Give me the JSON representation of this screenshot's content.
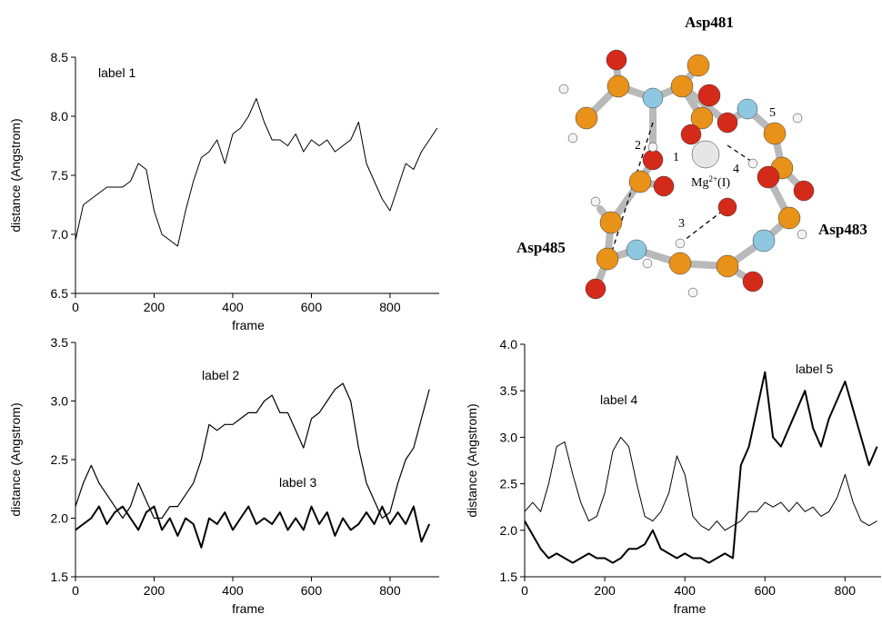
{
  "chart_data": [
    {
      "type": "line",
      "xlabel": "frame",
      "ylabel": "distance (Angstrom)",
      "xlim": [
        0,
        925
      ],
      "ylim": [
        6.5,
        8.5
      ],
      "xticks": [
        0,
        200,
        400,
        600,
        800
      ],
      "yticks": [
        {
          "value": 6.5,
          "label": "6.5"
        },
        {
          "value": 7,
          "label": "7.0"
        },
        {
          "value": 7.5,
          "label": "7.5"
        },
        {
          "value": 8,
          "label": "8.0"
        },
        {
          "value": 8.5,
          "label": "8.5"
        }
      ],
      "annotations": [
        "label 1"
      ],
      "x": [
        0,
        20,
        40,
        60,
        80,
        100,
        120,
        140,
        160,
        180,
        200,
        220,
        240,
        260,
        280,
        300,
        320,
        340,
        360,
        380,
        400,
        420,
        440,
        460,
        480,
        500,
        520,
        540,
        560,
        580,
        600,
        620,
        640,
        660,
        680,
        700,
        720,
        740,
        760,
        780,
        800,
        820,
        840,
        860,
        880,
        900,
        920
      ],
      "series": [
        {
          "color": "#000000",
          "width": 1,
          "values": [
            6.95,
            7.25,
            7.3,
            7.35,
            7.4,
            7.4,
            7.4,
            7.45,
            7.6,
            7.55,
            7.2,
            7.0,
            6.95,
            6.9,
            7.2,
            7.45,
            7.65,
            7.7,
            7.8,
            7.6,
            7.85,
            7.9,
            8.0,
            8.15,
            7.95,
            7.8,
            7.8,
            7.75,
            7.85,
            7.7,
            7.8,
            7.75,
            7.8,
            7.7,
            7.75,
            7.8,
            7.95,
            7.6,
            7.45,
            7.3,
            7.2,
            7.4,
            7.6,
            7.55,
            7.7,
            7.8,
            7.9
          ]
        }
      ]
    },
    {
      "type": "line",
      "xlabel": "frame",
      "ylabel": "distance (Angstrom)",
      "xlim": [
        0,
        925
      ],
      "ylim": [
        1.5,
        3.5
      ],
      "xticks": [
        0,
        200,
        400,
        600,
        800
      ],
      "yticks": [
        1.5,
        {
          "value": 2,
          "label": "2.0"
        },
        2.5,
        {
          "value": 3,
          "label": "3.0"
        },
        3.5
      ],
      "annotations": [
        "label 2",
        "label 3"
      ],
      "x": [
        0,
        20,
        40,
        60,
        80,
        100,
        120,
        140,
        160,
        180,
        200,
        220,
        240,
        260,
        280,
        300,
        320,
        340,
        360,
        380,
        400,
        420,
        440,
        460,
        480,
        500,
        520,
        540,
        560,
        580,
        600,
        620,
        640,
        660,
        680,
        700,
        720,
        740,
        760,
        780,
        800,
        820,
        840,
        860,
        880,
        900
      ],
      "series": [
        {
          "color": "#000000",
          "width": 1.2,
          "values": [
            2.1,
            2.3,
            2.45,
            2.3,
            2.2,
            2.1,
            2.0,
            2.1,
            2.3,
            2.15,
            2.0,
            2.0,
            2.1,
            2.1,
            2.2,
            2.3,
            2.5,
            2.8,
            2.75,
            2.8,
            2.8,
            2.85,
            2.9,
            2.9,
            3.0,
            3.05,
            2.9,
            2.9,
            2.75,
            2.6,
            2.85,
            2.9,
            3.0,
            3.1,
            3.15,
            3.0,
            2.6,
            2.3,
            2.15,
            2.0,
            2.05,
            2.3,
            2.5,
            2.6,
            2.85,
            3.1
          ]
        },
        {
          "color": "#000000",
          "width": 2,
          "values": [
            1.9,
            1.95,
            2.0,
            2.1,
            1.95,
            2.05,
            2.1,
            2.0,
            1.9,
            2.05,
            2.1,
            1.9,
            2.0,
            1.85,
            2.0,
            1.95,
            1.75,
            2.0,
            1.95,
            2.05,
            1.9,
            2.0,
            2.1,
            1.95,
            2.0,
            1.95,
            2.05,
            1.9,
            2.0,
            1.9,
            2.1,
            1.95,
            2.05,
            1.85,
            2.0,
            1.9,
            1.95,
            2.05,
            1.95,
            2.1,
            1.95,
            2.05,
            1.95,
            2.1,
            1.8,
            1.95
          ]
        }
      ]
    },
    {
      "type": "line",
      "xlabel": "frame",
      "ylabel": "distance (Angstrom)",
      "xlim": [
        0,
        890
      ],
      "ylim": [
        1.5,
        4
      ],
      "xticks": [
        0,
        200,
        400,
        600,
        800
      ],
      "yticks": [
        1.5,
        {
          "value": 2,
          "label": "2.0"
        },
        2.5,
        {
          "value": 3,
          "label": "3.0"
        },
        3.5,
        {
          "value": 4,
          "label": "4.0"
        }
      ],
      "annotations": [
        "label 4",
        "label 5"
      ],
      "x": [
        0,
        20,
        40,
        60,
        80,
        100,
        120,
        140,
        160,
        180,
        200,
        220,
        240,
        260,
        280,
        300,
        320,
        340,
        360,
        380,
        400,
        420,
        440,
        460,
        480,
        500,
        520,
        540,
        560,
        580,
        600,
        620,
        640,
        660,
        680,
        700,
        720,
        740,
        760,
        780,
        800,
        820,
        840,
        860,
        880
      ],
      "series": [
        {
          "color": "#000000",
          "width": 1,
          "values": [
            2.2,
            2.3,
            2.2,
            2.5,
            2.9,
            2.95,
            2.6,
            2.3,
            2.1,
            2.15,
            2.4,
            2.85,
            3.0,
            2.9,
            2.5,
            2.15,
            2.1,
            2.2,
            2.4,
            2.8,
            2.6,
            2.15,
            2.05,
            2.0,
            2.1,
            2.0,
            2.05,
            2.1,
            2.2,
            2.2,
            2.3,
            2.25,
            2.3,
            2.2,
            2.3,
            2.2,
            2.25,
            2.15,
            2.2,
            2.35,
            2.6,
            2.3,
            2.1,
            2.05,
            2.1
          ]
        },
        {
          "color": "#000000",
          "width": 2,
          "values": [
            2.1,
            1.95,
            1.8,
            1.7,
            1.75,
            1.7,
            1.65,
            1.7,
            1.75,
            1.7,
            1.7,
            1.65,
            1.7,
            1.8,
            1.8,
            1.85,
            2.0,
            1.8,
            1.75,
            1.7,
            1.75,
            1.7,
            1.7,
            1.65,
            1.7,
            1.75,
            1.7,
            2.7,
            2.9,
            3.3,
            3.7,
            3.0,
            2.9,
            3.1,
            3.3,
            3.5,
            3.1,
            2.9,
            3.2,
            3.4,
            3.6,
            3.3,
            3.0,
            2.7,
            2.9
          ]
        }
      ]
    }
  ],
  "diagram": {
    "residues": [
      "Asp481",
      "Asp483",
      "Asp485"
    ],
    "distances": [
      "1",
      "2",
      "3",
      "4",
      "5"
    ],
    "ion": {
      "base": "Mg",
      "sup": "2+",
      "rest": "(I)"
    }
  }
}
